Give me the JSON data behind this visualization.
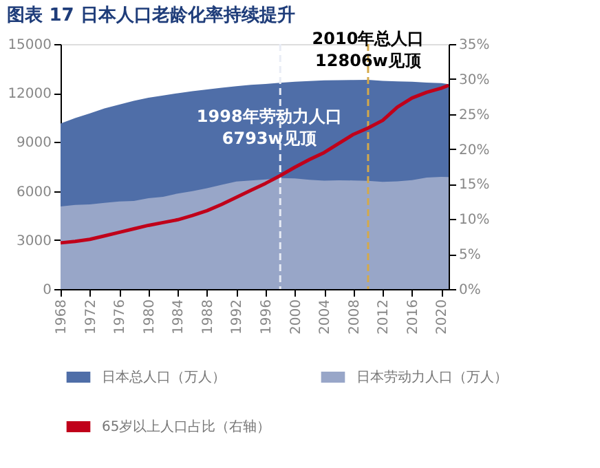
{
  "chart_data": {
    "type": "area",
    "title": "图表 17  日本人口老龄化率持续提升",
    "x": [
      1968,
      1970,
      1972,
      1974,
      1976,
      1978,
      1980,
      1982,
      1984,
      1986,
      1988,
      1990,
      1992,
      1994,
      1996,
      1998,
      2000,
      2002,
      2004,
      2006,
      2008,
      2010,
      2012,
      2014,
      2016,
      2018,
      2020,
      2021
    ],
    "series": [
      {
        "name": "日本总人口（万人）",
        "color": "#4f6ea8",
        "values": [
          10130,
          10470,
          10760,
          11060,
          11290,
          11520,
          11710,
          11850,
          11990,
          12110,
          12220,
          12320,
          12420,
          12500,
          12560,
          12630,
          12690,
          12740,
          12780,
          12790,
          12800,
          12806,
          12750,
          12710,
          12690,
          12640,
          12610,
          12550
        ]
      },
      {
        "name": "日本劳动力人口（万人）",
        "color": "#98a6c8",
        "values": [
          5060,
          5150,
          5180,
          5280,
          5360,
          5390,
          5560,
          5650,
          5850,
          5990,
          6170,
          6380,
          6580,
          6650,
          6710,
          6793,
          6770,
          6690,
          6640,
          6660,
          6650,
          6630,
          6560,
          6590,
          6670,
          6830,
          6870,
          6860
        ]
      },
      {
        "name": "65岁以上人口占比（右轴）",
        "type": "line",
        "axis": "y2",
        "color": "#c0001a",
        "values": [
          6.6,
          6.8,
          7.1,
          7.6,
          8.1,
          8.6,
          9.1,
          9.5,
          9.9,
          10.5,
          11.2,
          12.1,
          13.1,
          14.1,
          15.1,
          16.2,
          17.4,
          18.5,
          19.5,
          20.8,
          22.1,
          23.0,
          24.1,
          26.0,
          27.3,
          28.1,
          28.7,
          29.1
        ]
      }
    ],
    "xlim": [
      1968,
      2021
    ],
    "xticks": [
      1968,
      1972,
      1976,
      1980,
      1984,
      1988,
      1992,
      1996,
      2000,
      2004,
      2008,
      2012,
      2016,
      2020
    ],
    "ylim": [
      0,
      15000
    ],
    "yticks": [
      0,
      3000,
      6000,
      9000,
      12000,
      15000
    ],
    "y2lim": [
      0,
      35
    ],
    "y2ticks": [
      {
        "value": 0,
        "label": "0%"
      },
      {
        "value": 5,
        "label": "5%"
      },
      {
        "value": 10,
        "label": "10%"
      },
      {
        "value": 15,
        "label": "15%"
      },
      {
        "value": 20,
        "label": "20%"
      },
      {
        "value": 25,
        "label": "25%"
      },
      {
        "value": 30,
        "label": "30%"
      },
      {
        "value": 35,
        "label": "35%"
      }
    ],
    "ref_lines": [
      {
        "axis": "x",
        "value": 1998,
        "color": "#e8ecf5",
        "line_style": "dashed"
      },
      {
        "axis": "x",
        "value": 2010,
        "color": "#d4a94a",
        "line_style": "dashed"
      }
    ],
    "annotations": [
      {
        "text": "1998年劳动力人口\n6793w见顶",
        "x": 1998,
        "y": 6793
      },
      {
        "text": "2010年总人口\n12806w见顶",
        "x": 2010,
        "y": 12806
      }
    ],
    "grid": false,
    "legend": "bottom",
    "marker": "none",
    "line_style": "solid"
  }
}
